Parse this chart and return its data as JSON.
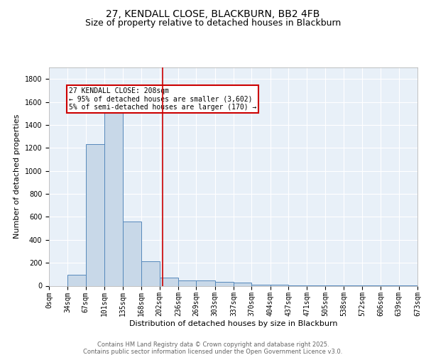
{
  "title": "27, KENDALL CLOSE, BLACKBURN, BB2 4FB",
  "subtitle": "Size of property relative to detached houses in Blackburn",
  "xlabel": "Distribution of detached houses by size in Blackburn",
  "ylabel": "Number of detached properties",
  "bin_labels": [
    "0sqm",
    "34sqm",
    "67sqm",
    "101sqm",
    "135sqm",
    "168sqm",
    "202sqm",
    "236sqm",
    "269sqm",
    "303sqm",
    "337sqm",
    "370sqm",
    "404sqm",
    "437sqm",
    "471sqm",
    "505sqm",
    "538sqm",
    "572sqm",
    "606sqm",
    "639sqm",
    "673sqm"
  ],
  "bin_edges": [
    0,
    34,
    67,
    101,
    135,
    168,
    202,
    236,
    269,
    303,
    337,
    370,
    404,
    437,
    471,
    505,
    538,
    572,
    606,
    639,
    673
  ],
  "bar_heights": [
    0,
    95,
    1230,
    1620,
    560,
    215,
    70,
    45,
    45,
    35,
    25,
    12,
    8,
    5,
    3,
    2,
    2,
    1,
    1,
    1
  ],
  "bar_color": "#c8d8e8",
  "bar_edge_color": "#5588bb",
  "vline_x": 208,
  "vline_color": "#cc0000",
  "annotation_text": "27 KENDALL CLOSE: 208sqm\n← 95% of detached houses are smaller (3,602)\n5% of semi-detached houses are larger (170) →",
  "annotation_box_color": "#cc0000",
  "ylim": [
    0,
    1900
  ],
  "yticks": [
    0,
    200,
    400,
    600,
    800,
    1000,
    1200,
    1400,
    1600,
    1800
  ],
  "background_color": "#e8f0f8",
  "grid_color": "#ffffff",
  "footer_line1": "Contains HM Land Registry data © Crown copyright and database right 2025.",
  "footer_line2": "Contains public sector information licensed under the Open Government Licence v3.0.",
  "title_fontsize": 10,
  "subtitle_fontsize": 9,
  "axis_label_fontsize": 8,
  "tick_fontsize": 7,
  "annotation_fontsize": 7,
  "footer_fontsize": 6
}
